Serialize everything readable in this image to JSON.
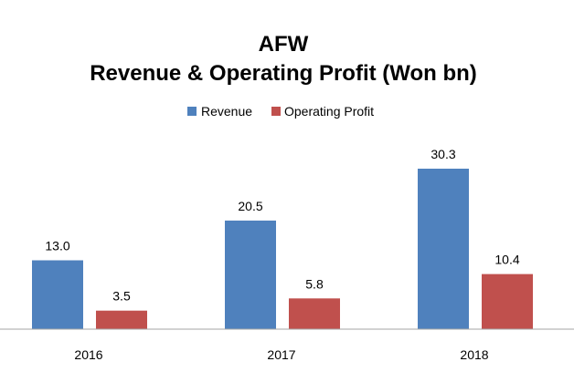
{
  "chart_data": {
    "type": "bar",
    "title": "AFW",
    "subtitle": "Revenue & Operating Profit (Won bn)",
    "categories": [
      "2016",
      "2017",
      "2018"
    ],
    "series": [
      {
        "name": "Revenue",
        "values": [
          13.0,
          20.5,
          30.3
        ],
        "labels": [
          "13.0",
          "20.5",
          "30.3"
        ],
        "color": "#4f81bd"
      },
      {
        "name": "Operating Profit",
        "values": [
          3.5,
          5.8,
          10.4
        ],
        "labels": [
          "3.5",
          "5.8",
          "10.4"
        ],
        "color": "#c0504d"
      }
    ],
    "xlabel": "",
    "ylabel": "",
    "ylim": [
      0,
      30.3
    ],
    "legend_position": "top-center",
    "grid": false
  }
}
